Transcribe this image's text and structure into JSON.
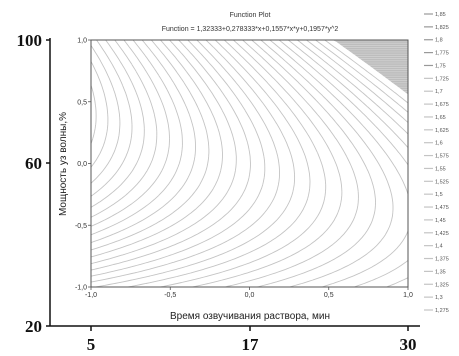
{
  "chart_data": {
    "type": "contour",
    "title": "Function Plot",
    "subtitle": "Function = 1,32333+0,278333*x+0,1557*x*y+0,1957*y^2",
    "xlabel": "Время озвучивания раствора, мин",
    "ylabel": "Мощность уз волны,%",
    "xlim": [
      -1.0,
      1.0
    ],
    "ylim": [
      -1.0,
      1.0
    ],
    "x_ticks": [
      "-1,0",
      "-0,5",
      "0,0",
      "0,5",
      "1,0"
    ],
    "y_ticks": [
      "-1,0",
      "-0,5",
      "0,0",
      "0,5",
      "1,0"
    ],
    "function": {
      "c0": 1.32333,
      "cx": 0.278333,
      "cxy": 0.1557,
      "cyy": 0.1957
    },
    "shaded_region": {
      "condition": "z >= 1.75",
      "color": "#bdbdbd"
    },
    "legend": {
      "placement": "right",
      "levels": [
        "1,85",
        "1,825",
        "1,8",
        "1,775",
        "1,75",
        "1,725",
        "1,7",
        "1,675",
        "1,65",
        "1,625",
        "1,6",
        "1,575",
        "1,55",
        "1,525",
        "1,5",
        "1,475",
        "1,45",
        "1,425",
        "1,4",
        "1,375",
        "1,35",
        "1,325",
        "1,3",
        "1,275"
      ]
    },
    "outer_y_ticks": [
      "100",
      "60",
      "20"
    ],
    "outer_x_ticks": [
      "5",
      "17",
      "30"
    ]
  }
}
